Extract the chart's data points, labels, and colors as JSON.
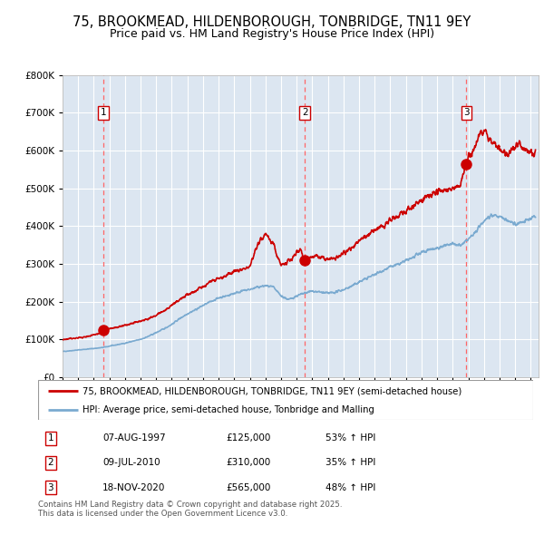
{
  "title": "75, BROOKMEAD, HILDENBOROUGH, TONBRIDGE, TN11 9EY",
  "subtitle": "Price paid vs. HM Land Registry's House Price Index (HPI)",
  "legend_line1": "75, BROOKMEAD, HILDENBOROUGH, TONBRIDGE, TN11 9EY (semi-detached house)",
  "legend_line2": "HPI: Average price, semi-detached house, Tonbridge and Malling",
  "footer": "Contains HM Land Registry data © Crown copyright and database right 2025.\nThis data is licensed under the Open Government Licence v3.0.",
  "purchases": [
    {
      "num": 1,
      "date": "07-AUG-1997",
      "price": 125000,
      "hpi_pct": "53% ↑ HPI"
    },
    {
      "num": 2,
      "date": "09-JUL-2010",
      "price": 310000,
      "hpi_pct": "35% ↑ HPI"
    },
    {
      "num": 3,
      "date": "18-NOV-2020",
      "price": 565000,
      "hpi_pct": "48% ↑ HPI"
    }
  ],
  "purchase_dates_decimal": [
    1997.6,
    2010.52,
    2020.88
  ],
  "purchase_prices": [
    125000,
    310000,
    565000
  ],
  "ylim": [
    0,
    800000
  ],
  "xlim_start": 1995.0,
  "xlim_end": 2025.5,
  "bg_color": "#dce6f1",
  "red_line_color": "#cc0000",
  "blue_line_color": "#7aaad0",
  "dashed_line_color": "#ff6666",
  "marker_box_color": "#cc0000",
  "grid_color": "#ffffff",
  "hpi_keypoints_x": [
    1995.0,
    1995.5,
    1996.0,
    1996.5,
    1997.0,
    1997.5,
    1998.0,
    1998.5,
    1999.0,
    1999.5,
    2000.0,
    2000.5,
    2001.0,
    2001.5,
    2002.0,
    2002.5,
    2003.0,
    2003.5,
    2004.0,
    2004.5,
    2005.0,
    2005.5,
    2006.0,
    2006.5,
    2007.0,
    2007.5,
    2008.0,
    2008.5,
    2009.0,
    2009.5,
    2010.0,
    2010.5,
    2011.0,
    2011.5,
    2012.0,
    2012.5,
    2013.0,
    2013.5,
    2014.0,
    2014.5,
    2015.0,
    2015.5,
    2016.0,
    2016.5,
    2017.0,
    2017.5,
    2018.0,
    2018.5,
    2019.0,
    2019.5,
    2020.0,
    2020.5,
    2021.0,
    2021.5,
    2022.0,
    2022.5,
    2023.0,
    2023.5,
    2024.0,
    2024.5,
    2025.0,
    2025.3
  ],
  "hpi_keypoints_y": [
    68000,
    70000,
    72000,
    74000,
    76000,
    78000,
    82000,
    86000,
    90000,
    95000,
    100000,
    108000,
    118000,
    128000,
    140000,
    155000,
    168000,
    178000,
    190000,
    200000,
    210000,
    215000,
    222000,
    228000,
    232000,
    238000,
    242000,
    238000,
    215000,
    205000,
    215000,
    222000,
    228000,
    225000,
    222000,
    225000,
    232000,
    240000,
    252000,
    262000,
    272000,
    282000,
    292000,
    298000,
    308000,
    318000,
    330000,
    338000,
    342000,
    348000,
    352000,
    348000,
    365000,
    385000,
    415000,
    430000,
    425000,
    415000,
    405000,
    410000,
    420000,
    425000
  ],
  "prop_keypoints_x": [
    1995.0,
    1995.5,
    1996.0,
    1996.5,
    1997.0,
    1997.5,
    1997.6,
    1998.0,
    1998.5,
    1999.0,
    1999.5,
    2000.0,
    2000.5,
    2001.0,
    2001.5,
    2002.0,
    2002.5,
    2003.0,
    2003.5,
    2004.0,
    2004.5,
    2005.0,
    2005.5,
    2006.0,
    2006.5,
    2007.0,
    2007.5,
    2008.0,
    2008.25,
    2008.5,
    2008.75,
    2009.0,
    2009.25,
    2009.5,
    2009.75,
    2010.0,
    2010.25,
    2010.52,
    2010.75,
    2011.0,
    2011.5,
    2012.0,
    2012.5,
    2013.0,
    2013.5,
    2014.0,
    2014.5,
    2015.0,
    2015.5,
    2016.0,
    2016.5,
    2017.0,
    2017.5,
    2018.0,
    2018.5,
    2019.0,
    2019.5,
    2020.0,
    2020.5,
    2020.88,
    2021.0,
    2021.25,
    2021.5,
    2021.75,
    2022.0,
    2022.25,
    2022.5,
    2022.75,
    2023.0,
    2023.25,
    2023.5,
    2023.75,
    2024.0,
    2024.25,
    2024.5,
    2024.75,
    2025.0,
    2025.3
  ],
  "prop_keypoints_y": [
    100000,
    102000,
    104000,
    107000,
    112000,
    118000,
    125000,
    128000,
    132000,
    138000,
    142000,
    148000,
    155000,
    165000,
    175000,
    190000,
    205000,
    218000,
    228000,
    240000,
    252000,
    262000,
    268000,
    278000,
    285000,
    295000,
    350000,
    380000,
    370000,
    355000,
    320000,
    295000,
    300000,
    310000,
    315000,
    330000,
    340000,
    310000,
    315000,
    320000,
    318000,
    312000,
    318000,
    328000,
    340000,
    360000,
    375000,
    388000,
    400000,
    415000,
    425000,
    440000,
    455000,
    468000,
    480000,
    490000,
    495000,
    500000,
    505000,
    565000,
    578000,
    598000,
    620000,
    645000,
    660000,
    640000,
    628000,
    615000,
    605000,
    598000,
    592000,
    598000,
    610000,
    618000,
    605000,
    598000,
    590000,
    598000
  ]
}
